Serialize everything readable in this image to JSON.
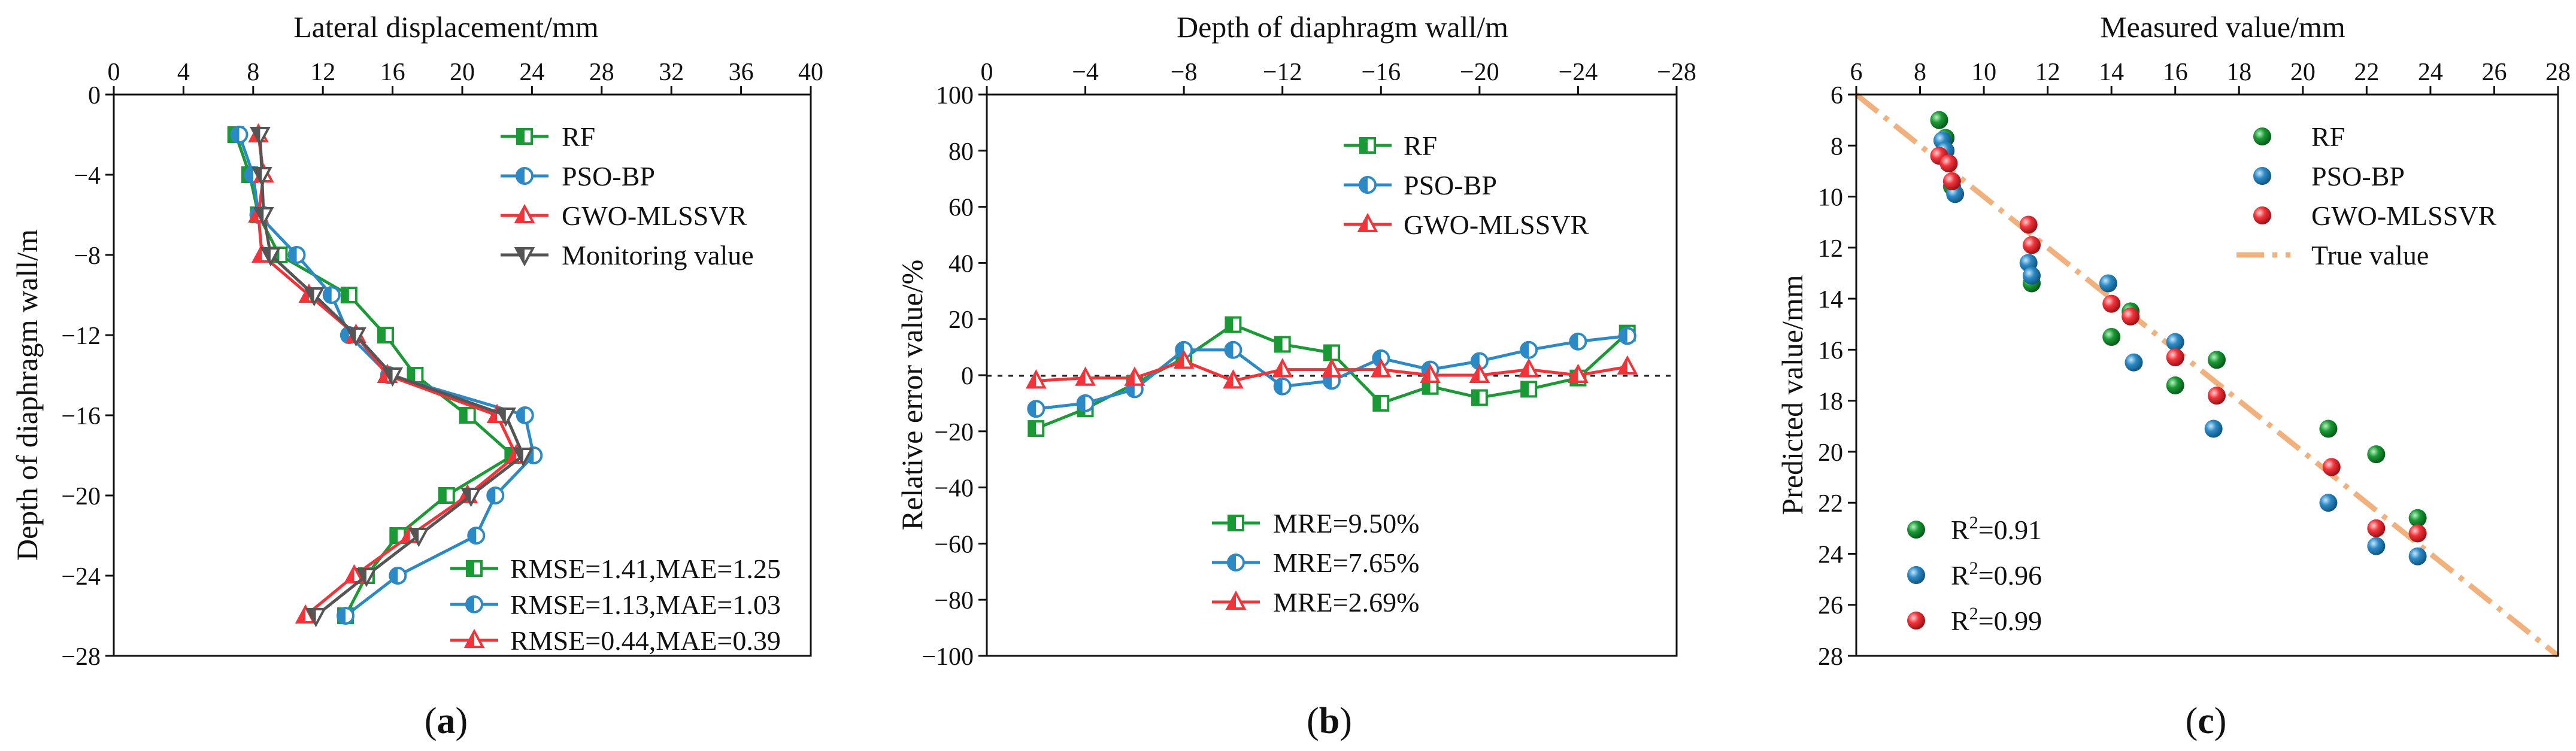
{
  "colors": {
    "rf": "#1a9a34",
    "pso": "#2b8ac6",
    "gwo": "#f2333a",
    "mon": "#555555",
    "true": "#f2b07c"
  },
  "panel_labels": {
    "a_prefix": "(",
    "a_letter": "a",
    "a_suffix": ")",
    "b_prefix": "(",
    "b_letter": "b",
    "b_suffix": ")",
    "c_prefix": "(",
    "c_letter": "c",
    "c_suffix": ")"
  },
  "chart_data": [
    {
      "type": "line",
      "panel": "a",
      "xlabel": "Lateral displacement/mm",
      "ylabel": "Depth of diaphragm wall/m",
      "xlim": [
        0,
        40
      ],
      "ylim": [
        0,
        -28
      ],
      "xticks": [
        "0",
        "4",
        "8",
        "12",
        "16",
        "20",
        "24",
        "28",
        "32",
        "36",
        "40"
      ],
      "yticks": [
        "0",
        "−4",
        "−8",
        "−12",
        "−16",
        "−20",
        "−24",
        "−28"
      ],
      "y": [
        -2,
        -4,
        -6,
        -8,
        -10,
        -12,
        -14,
        -16,
        -18,
        -20,
        -22,
        -24,
        -26
      ],
      "series": [
        {
          "name": "RF",
          "color_key": "rf",
          "marker": "square",
          "values": [
            7.0,
            7.8,
            8.3,
            9.5,
            13.5,
            15.6,
            17.3,
            20.3,
            22.9,
            19.1,
            16.3,
            14.5,
            13.3
          ]
        },
        {
          "name": "PSO-BP",
          "color_key": "pso",
          "marker": "circle",
          "values": [
            7.2,
            8.0,
            8.3,
            10.5,
            12.5,
            13.5,
            15.8,
            23.6,
            24.1,
            21.9,
            20.8,
            16.3,
            13.3
          ]
        },
        {
          "name": "GWO-MLSSVR",
          "color_key": "gwo",
          "marker": "triangle",
          "values": [
            8.3,
            8.6,
            8.3,
            8.5,
            11.2,
            13.9,
            15.7,
            22.0,
            23.1,
            20.3,
            17.0,
            13.8,
            11.0
          ]
        },
        {
          "name": "Monitoring value",
          "color_key": "mon",
          "marker": "invtriangle",
          "values": [
            8.4,
            8.5,
            8.6,
            9.0,
            11.5,
            13.9,
            16.0,
            22.5,
            23.5,
            20.5,
            17.5,
            14.5,
            11.6
          ]
        }
      ],
      "stats": [
        {
          "name": "RF",
          "text": "RMSE=1.41,MAE=1.25"
        },
        {
          "name": "PSO-BP",
          "text": "RMSE=1.13,MAE=1.03"
        },
        {
          "name": "GWO-MLSSVR",
          "text": "RMSE=0.44,MAE=0.39"
        }
      ]
    },
    {
      "type": "line",
      "panel": "b",
      "xlabel": "Depth of diaphragm wall/m",
      "ylabel": "Relative error value/%",
      "xlim": [
        0,
        -28
      ],
      "ylim": [
        -100,
        100
      ],
      "xticks": [
        "0",
        "−4",
        "−8",
        "−12",
        "−16",
        "−20",
        "−24",
        "−28"
      ],
      "yticks": [
        "100",
        "80",
        "60",
        "40",
        "20",
        "0",
        "−20",
        "−40",
        "−60",
        "−80",
        "−100"
      ],
      "x": [
        -2,
        -4,
        -6,
        -8,
        -10,
        -12,
        -14,
        -16,
        -18,
        -20,
        -22,
        -24,
        -26
      ],
      "series": [
        {
          "name": "RF",
          "color_key": "rf",
          "marker": "square",
          "values": [
            -19,
            -12,
            -3,
            6,
            18,
            11,
            8,
            -10,
            -4,
            -8,
            -5,
            -1,
            15
          ]
        },
        {
          "name": "PSO-BP",
          "color_key": "pso",
          "marker": "circle",
          "values": [
            -12,
            -10,
            -5,
            9,
            9,
            -4,
            -2,
            6,
            2,
            5,
            9,
            12,
            14
          ]
        },
        {
          "name": "GWO-MLSSVR",
          "color_key": "gwo",
          "marker": "triangle",
          "values": [
            -2,
            -1,
            -1,
            5,
            -2,
            2,
            2,
            2,
            0,
            0,
            2,
            0,
            3
          ]
        }
      ],
      "stats": [
        {
          "name": "RF",
          "text": "MRE=9.50%"
        },
        {
          "name": "PSO-BP",
          "text": "MRE=7.65%"
        },
        {
          "name": "GWO-MLSSVR",
          "text": "MRE=2.69%"
        }
      ]
    },
    {
      "type": "scatter",
      "panel": "c",
      "xlabel": "Measured value/mm",
      "ylabel": "Predicted value/mm",
      "xlim": [
        6,
        28
      ],
      "ylim": [
        6,
        28
      ],
      "xticks": [
        "6",
        "8",
        "10",
        "12",
        "14",
        "16",
        "18",
        "20",
        "22",
        "24",
        "26",
        "28"
      ],
      "yticks": [
        "6",
        "8",
        "10",
        "12",
        "14",
        "16",
        "18",
        "20",
        "22",
        "24",
        "26",
        "28"
      ],
      "series": [
        {
          "name": "RF",
          "color_key": "rf",
          "points": [
            [
              8.6,
              7.0
            ],
            [
              8.8,
              7.7
            ],
            [
              9.0,
              9.6
            ],
            [
              11.5,
              13.4
            ],
            [
              14.0,
              15.5
            ],
            [
              14.6,
              14.5
            ],
            [
              16.0,
              17.4
            ],
            [
              17.3,
              16.4
            ],
            [
              20.8,
              19.1
            ],
            [
              22.3,
              20.1
            ],
            [
              23.6,
              22.6
            ]
          ]
        },
        {
          "name": "PSO-BP",
          "color_key": "pso",
          "points": [
            [
              8.7,
              7.8
            ],
            [
              8.8,
              8.2
            ],
            [
              9.1,
              9.9
            ],
            [
              11.4,
              12.6
            ],
            [
              11.5,
              13.1
            ],
            [
              13.9,
              13.4
            ],
            [
              14.7,
              16.5
            ],
            [
              16.0,
              15.7
            ],
            [
              17.2,
              19.1
            ],
            [
              20.8,
              22.0
            ],
            [
              22.3,
              23.7
            ],
            [
              23.6,
              24.1
            ]
          ]
        },
        {
          "name": "GWO-MLSSVR",
          "color_key": "gwo",
          "points": [
            [
              8.6,
              8.4
            ],
            [
              8.9,
              8.7
            ],
            [
              9.0,
              9.4
            ],
            [
              11.4,
              11.1
            ],
            [
              11.5,
              11.9
            ],
            [
              14.0,
              14.2
            ],
            [
              14.6,
              14.7
            ],
            [
              16.0,
              16.3
            ],
            [
              17.3,
              17.8
            ],
            [
              20.9,
              20.6
            ],
            [
              22.3,
              23.0
            ],
            [
              23.6,
              23.2
            ]
          ]
        }
      ],
      "true_line": {
        "name": "True value",
        "from": [
          6,
          6
        ],
        "to": [
          28,
          28
        ]
      },
      "stats": [
        {
          "name": "RF",
          "text_base": "R",
          "text_sup": "2",
          "text_rest": "=0.91"
        },
        {
          "name": "PSO-BP",
          "text_base": "R",
          "text_sup": "2",
          "text_rest": "=0.96"
        },
        {
          "name": "GWO-MLSSVR",
          "text_base": "R",
          "text_sup": "2",
          "text_rest": "=0.99"
        }
      ]
    }
  ]
}
